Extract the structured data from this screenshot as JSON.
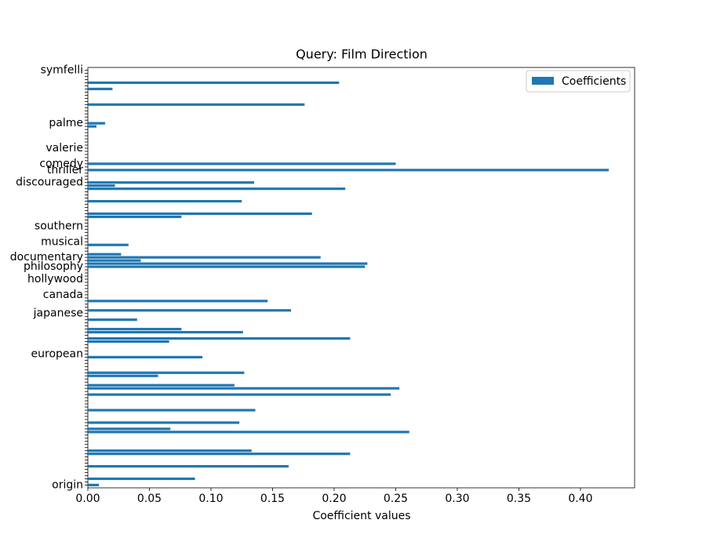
{
  "chart_data": {
    "type": "barh",
    "title": "Query: Film Direction",
    "xlabel": "Coefficient values",
    "categories": [
      "origin",
      null,
      null,
      null,
      null,
      null,
      null,
      null,
      null,
      null,
      null,
      null,
      null,
      null,
      null,
      null,
      null,
      null,
      null,
      null,
      null,
      null,
      null,
      null,
      null,
      null,
      null,
      null,
      null,
      null,
      null,
      null,
      null,
      null,
      null,
      null,
      null,
      null,
      null,
      null,
      null,
      null,
      "european",
      null,
      null,
      null,
      null,
      null,
      null,
      null,
      null,
      null,
      null,
      null,
      null,
      "japanese",
      null,
      null,
      null,
      null,
      null,
      "canada",
      null,
      null,
      null,
      null,
      "hollywood",
      null,
      null,
      null,
      "philosophy",
      null,
      null,
      "documentary",
      null,
      null,
      null,
      null,
      "musical",
      null,
      null,
      null,
      null,
      "southern",
      null,
      null,
      null,
      null,
      null,
      null,
      null,
      null,
      null,
      null,
      null,
      null,
      null,
      "discouraged",
      null,
      null,
      null,
      "thriller",
      null,
      "comedy",
      null,
      null,
      null,
      null,
      "valerie",
      null,
      null,
      null,
      null,
      null,
      null,
      null,
      "palme",
      null,
      null,
      null,
      null,
      null,
      null,
      null,
      null,
      null,
      null,
      null,
      null,
      null,
      null,
      null,
      null,
      "symfelli"
    ],
    "series": [
      {
        "name": "Coefficients",
        "color": "#1f77b4",
        "values": [
          0.009,
          0,
          0.087,
          0,
          0,
          0,
          0.163,
          0,
          0,
          0,
          0.213,
          0.133,
          0,
          0,
          0,
          0,
          0,
          0.261,
          0.067,
          0,
          0.123,
          0,
          0,
          0,
          0.136,
          0,
          0,
          0,
          0,
          0.246,
          0,
          0.253,
          0.119,
          0,
          0,
          0.057,
          0.127,
          0,
          0,
          0,
          0,
          0.093,
          0,
          0,
          0,
          0,
          0.066,
          0.213,
          0,
          0.126,
          0.076,
          0,
          0,
          0.04,
          0,
          0,
          0.165,
          0,
          0,
          0.146,
          0,
          0,
          0,
          0,
          0,
          0,
          0,
          0,
          0,
          0,
          0.225,
          0.227,
          0.043,
          0.189,
          0.027,
          0,
          0,
          0.033,
          0,
          0,
          0,
          0,
          0,
          0,
          0,
          0,
          0.076,
          0.182,
          0,
          0,
          0,
          0.125,
          0,
          0,
          0,
          0.209,
          0.022,
          0.135,
          0,
          0,
          0,
          0.423,
          0,
          0.25,
          0,
          0,
          0,
          0,
          0,
          0,
          0,
          0,
          0,
          0,
          0,
          0.007,
          0.014,
          0,
          0,
          0,
          0,
          0,
          0.176,
          0,
          0,
          0,
          0,
          0.02,
          0,
          0.204,
          0,
          0,
          0,
          0
        ]
      }
    ],
    "xlim": [
      0,
      0.444
    ],
    "xticks": [
      {
        "value": 0,
        "label": "0.00"
      },
      0.05,
      {
        "value": 0.1,
        "label": "0.10"
      },
      0.15,
      {
        "value": 0.2,
        "label": "0.20"
      },
      0.25,
      {
        "value": 0.3,
        "label": "0.30"
      },
      0.35,
      {
        "value": 0.4,
        "label": "0.40"
      }
    ],
    "legend": "upper right",
    "grid": false
  }
}
